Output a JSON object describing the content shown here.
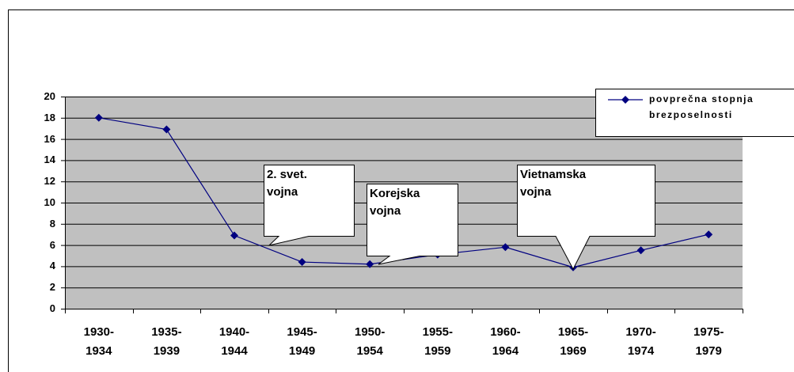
{
  "chart_data": {
    "type": "line",
    "categories": [
      "1930-\n1934",
      "1935-\n1939",
      "1940-\n1944",
      "1945-\n1949",
      "1950-\n1954",
      "1955-\n1959",
      "1960-\n1964",
      "1965-\n1969",
      "1970-\n1974",
      "1975-\n1979"
    ],
    "series": [
      {
        "name": "povprečna stopnja\nbrezposelnosti",
        "color": "#000080",
        "values": [
          18,
          16.9,
          6.9,
          4.4,
          4.2,
          5.1,
          5.8,
          3.9,
          5.5,
          7.0
        ]
      }
    ],
    "ylim": [
      0,
      20
    ],
    "yticks": [
      0,
      2,
      4,
      6,
      8,
      10,
      12,
      14,
      16,
      18,
      20
    ],
    "grid": true,
    "legend": "upper right",
    "annotations": [
      "2. svet.\nvojna",
      "Korejska\nvojna",
      "Vietnamska\nvojna"
    ]
  }
}
